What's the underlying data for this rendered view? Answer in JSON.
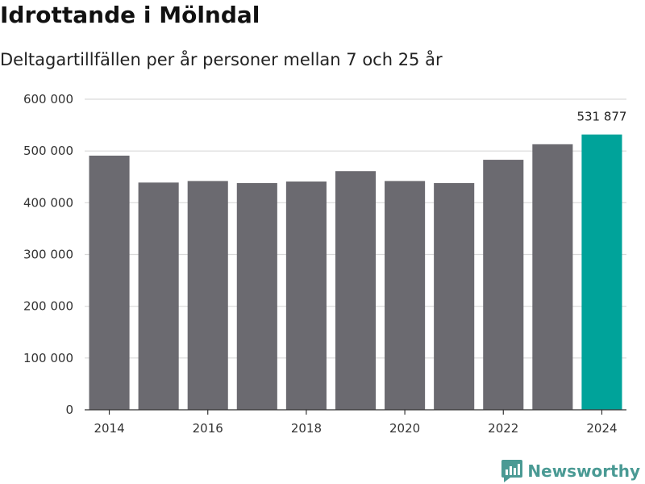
{
  "header": {
    "title": "Idrottande i Mölndal",
    "subtitle": "Deltagartillfällen per år personer mellan 7 och 25 år"
  },
  "brand": {
    "name": "Newsworthy"
  },
  "colors": {
    "bar": "#6b6a70",
    "highlight": "#00a39a",
    "grid": "#d9d9d9",
    "axis": "#333333",
    "brand": "#4a9a94"
  },
  "chart_data": {
    "type": "bar",
    "title": "Idrottande i Mölndal",
    "subtitle": "Deltagartillfällen per år personer mellan 7 och 25 år",
    "xlabel": "",
    "ylabel": "",
    "categories": [
      "2014",
      "2015",
      "2016",
      "2017",
      "2018",
      "2019",
      "2020",
      "2021",
      "2022",
      "2023",
      "2024"
    ],
    "values": [
      491000,
      439000,
      442000,
      438000,
      441000,
      461000,
      442000,
      438000,
      483000,
      513000,
      531877
    ],
    "highlight_index": 10,
    "highlight_label": "531 877",
    "ylim": [
      0,
      600000
    ],
    "yticks": [
      0,
      100000,
      200000,
      300000,
      400000,
      500000,
      600000
    ],
    "ytick_labels": [
      "0",
      "100 000",
      "200 000",
      "300 000",
      "400 000",
      "500 000",
      "600 000"
    ],
    "xtick_labels": [
      "2014",
      "2016",
      "2018",
      "2020",
      "2022",
      "2024"
    ],
    "grid": true
  }
}
